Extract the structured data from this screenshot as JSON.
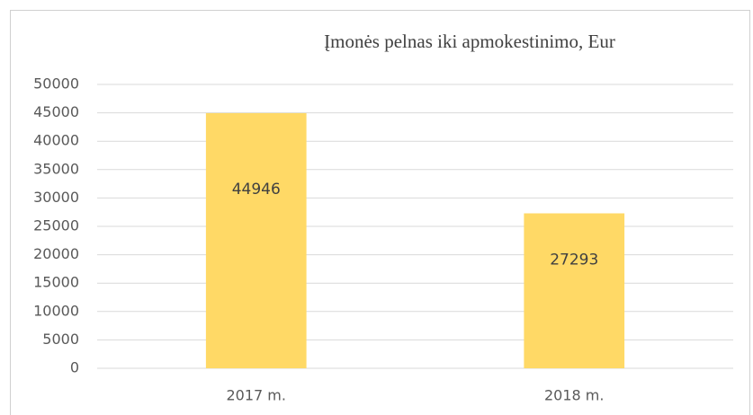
{
  "chart_data": {
    "type": "bar",
    "title": "Įmonės pelnas iki apmokestinimo, Eur",
    "categories": [
      "2017 m.",
      "2018 m."
    ],
    "values": [
      44946,
      27293
    ],
    "color": "#ffd966",
    "ylim": [
      0,
      50000
    ],
    "yticks": [
      0,
      5000,
      10000,
      15000,
      20000,
      25000,
      30000,
      35000,
      40000,
      45000,
      50000
    ],
    "grid": true,
    "data_labels": true
  }
}
